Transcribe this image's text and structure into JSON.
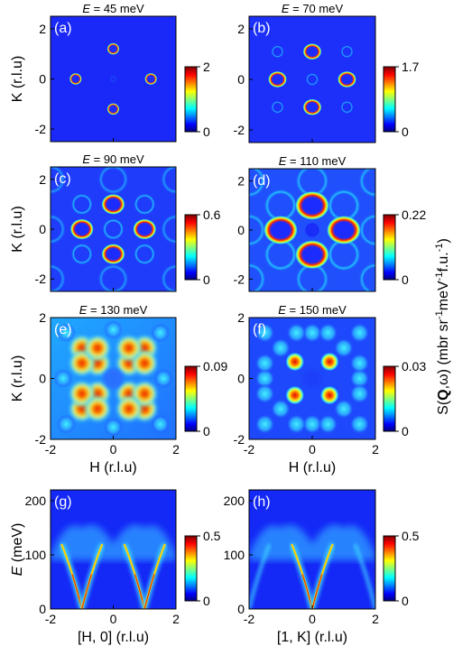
{
  "chart_data": [
    {
      "type": "heatmap",
      "panel": "(a)",
      "title": "E = 45 meV",
      "title_var": "E",
      "title_rest": " = 45 meV",
      "xlabel": "",
      "ylabel": "K (r.l.u)",
      "xlim": [
        -2,
        2
      ],
      "ylim": [
        -2.5,
        2.5
      ],
      "xticks": [],
      "yticks": [
        "2",
        "0",
        "-2"
      ],
      "colorbar": {
        "min": "0",
        "max": "2"
      }
    },
    {
      "type": "heatmap",
      "panel": "(b)",
      "title": "E = 70 meV",
      "title_var": "E",
      "title_rest": " = 70 meV",
      "xlabel": "",
      "ylabel": "",
      "xlim": [
        -2,
        2
      ],
      "ylim": [
        -2.5,
        2.5
      ],
      "xticks": [],
      "yticks": [
        "2",
        "0",
        "-2"
      ],
      "colorbar": {
        "min": "0",
        "max": "1.7"
      }
    },
    {
      "type": "heatmap",
      "panel": "(c)",
      "title": "E = 90 meV",
      "title_var": "E",
      "title_rest": " = 90 meV",
      "xlabel": "",
      "ylabel": "K (r.l.u)",
      "xlim": [
        -2,
        2
      ],
      "ylim": [
        -2.5,
        2.5
      ],
      "xticks": [],
      "yticks": [
        "2",
        "0",
        "-2"
      ],
      "colorbar": {
        "min": "0",
        "max": "0.6"
      }
    },
    {
      "type": "heatmap",
      "panel": "(d)",
      "title": "E = 110 meV",
      "title_var": "E",
      "title_rest": " = 110 meV",
      "xlabel": "",
      "ylabel": "",
      "xlim": [
        -2,
        2
      ],
      "ylim": [
        -2.5,
        2.5
      ],
      "xticks": [],
      "yticks": [
        "2",
        "0",
        "-2"
      ],
      "colorbar": {
        "min": "0",
        "max": "0.22"
      }
    },
    {
      "type": "heatmap",
      "panel": "(e)",
      "title": "E = 130 meV",
      "title_var": "E",
      "title_rest": " = 130 meV",
      "xlabel": "H (r.l.u)",
      "ylabel": "K (r.l.u)",
      "xlim": [
        -2,
        2
      ],
      "ylim": [
        -2,
        2
      ],
      "xticks": [
        "-2",
        "0",
        "2"
      ],
      "yticks": [
        "2",
        "0",
        "-2"
      ],
      "colorbar": {
        "min": "0",
        "max": "0.09"
      }
    },
    {
      "type": "heatmap",
      "panel": "(f)",
      "title": "E = 150 meV",
      "title_var": "E",
      "title_rest": " = 150 meV",
      "xlabel": "H (r.l.u)",
      "ylabel": "",
      "xlim": [
        -2,
        2
      ],
      "ylim": [
        -2,
        2
      ],
      "xticks": [
        "-2",
        "0",
        "2"
      ],
      "yticks": [
        "2",
        "0",
        "-2"
      ],
      "colorbar": {
        "min": "0",
        "max": "0.03"
      }
    },
    {
      "type": "heatmap",
      "panel": "(g)",
      "title": "",
      "title_var": "",
      "title_rest": "",
      "xlabel": "[H, 0] (r.l.u)",
      "ylabel": "E (meV)",
      "xlim": [
        -2,
        2
      ],
      "ylim": [
        0,
        220
      ],
      "xticks": [
        "-2",
        "0",
        "2"
      ],
      "yticks": [
        "200",
        "100",
        "0"
      ],
      "colorbar": {
        "min": "0",
        "max": "0.5"
      }
    },
    {
      "type": "heatmap",
      "panel": "(h)",
      "title": "",
      "title_var": "",
      "title_rest": "",
      "xlabel": "[1, K] (r.l.u)",
      "ylabel": "",
      "xlim": [
        -2,
        2
      ],
      "ylim": [
        0,
        220
      ],
      "xticks": [
        "-2",
        "0",
        "2"
      ],
      "yticks": [
        "200",
        "100",
        "0"
      ],
      "colorbar": {
        "min": "0",
        "max": "0.5"
      }
    }
  ],
  "shared_colorbar_label": "S(Q,ω) (mbr sr-1meV-1f.u.-1)",
  "colors": {
    "jet": [
      "#00007f",
      "#0000ff",
      "#007fff",
      "#00ffff",
      "#7fff7f",
      "#ffff00",
      "#ff7f00",
      "#ff0000",
      "#7f0000"
    ]
  }
}
